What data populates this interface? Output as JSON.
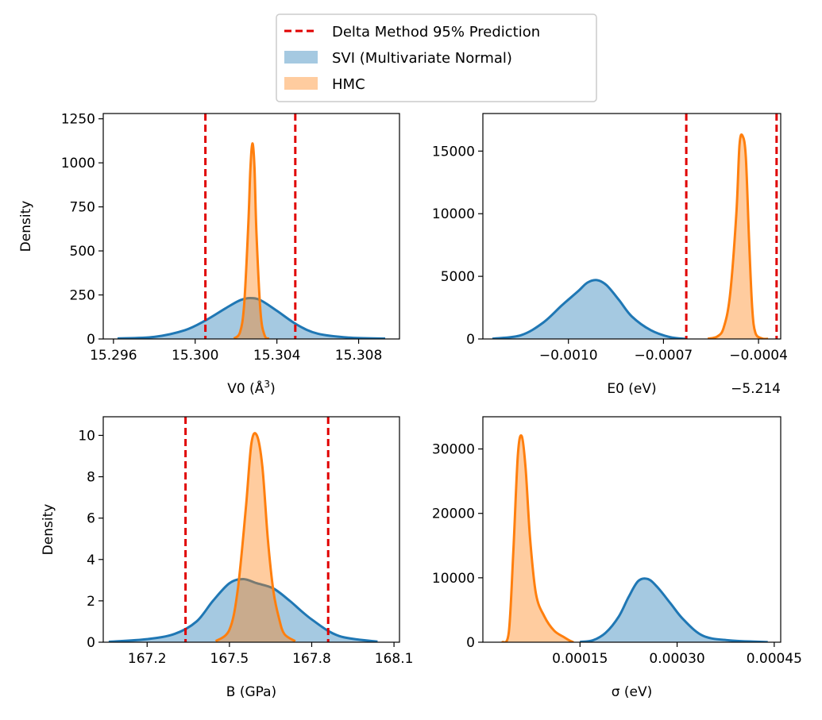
{
  "legend": {
    "placement": "top-center",
    "items": [
      {
        "label": "Delta Method 95% Prediction",
        "kind": "dashed-line",
        "color": "#e00000"
      },
      {
        "label": "SVI (Multivariate Normal)",
        "kind": "patch",
        "color": "#1f77b4"
      },
      {
        "label": "HMC",
        "kind": "patch",
        "color": "#ff7f0e"
      }
    ]
  },
  "colors": {
    "svi": "#1f77b4",
    "hmc": "#ff7f0e",
    "delta": "#e00000"
  },
  "chart_data": [
    {
      "id": "v0",
      "type": "area",
      "xlabel_main": "V0 (Å",
      "xlabel_sup": "3",
      "xlabel_end": ")",
      "ylabel": "Density",
      "xlim": [
        15.2955,
        15.31
      ],
      "ylim": [
        0,
        1280
      ],
      "xticks": [
        15.296,
        15.3,
        15.304,
        15.308
      ],
      "xtick_labels": [
        "15.296",
        "15.300",
        "15.304",
        "15.308"
      ],
      "yticks": [
        0,
        250,
        500,
        750,
        1000,
        1250
      ],
      "ytick_labels": [
        "0",
        "250",
        "500",
        "750",
        "1000",
        "1250"
      ],
      "offset_label": "",
      "delta_lines": [
        15.3005,
        15.3049
      ],
      "series": [
        {
          "key": "svi",
          "x": [
            15.2962,
            15.298,
            15.2995,
            15.3005,
            15.3015,
            15.3022,
            15.3027,
            15.3032,
            15.304,
            15.305,
            15.306,
            15.3075,
            15.3093
          ],
          "y": [
            3,
            12,
            50,
            105,
            175,
            220,
            232,
            220,
            160,
            80,
            30,
            8,
            2
          ]
        },
        {
          "key": "hmc",
          "x": [
            15.3019,
            15.3022,
            15.3024,
            15.3026,
            15.3027,
            15.3028,
            15.3029,
            15.303,
            15.3032,
            15.3034,
            15.3036
          ],
          "y": [
            3,
            40,
            200,
            650,
            960,
            1110,
            980,
            600,
            150,
            20,
            2
          ]
        }
      ]
    },
    {
      "id": "e0",
      "type": "area",
      "xlabel_main": "E0 (eV)",
      "xlabel_sup": "",
      "xlabel_end": "",
      "ylabel": "",
      "xlim": [
        -0.00127,
        -0.00033
      ],
      "ylim": [
        0,
        18000
      ],
      "xticks": [
        -0.001,
        -0.0007,
        -0.0004
      ],
      "xtick_labels": [
        "−0.0010",
        "−0.0007",
        "−0.0004"
      ],
      "yticks": [
        0,
        5000,
        10000,
        15000
      ],
      "ytick_labels": [
        "0",
        "5000",
        "10000",
        "15000"
      ],
      "offset_label": "−5.214",
      "delta_lines": [
        -0.000628,
        -0.000343
      ],
      "series": [
        {
          "key": "svi",
          "x": [
            -0.00124,
            -0.00115,
            -0.00108,
            -0.00102,
            -0.00097,
            -0.00094,
            -0.00091,
            -0.00088,
            -0.00084,
            -0.0008,
            -0.00074,
            -0.00068,
            -0.00063
          ],
          "y": [
            20,
            300,
            1300,
            2700,
            3800,
            4500,
            4700,
            4300,
            3100,
            1800,
            700,
            150,
            10
          ]
        },
        {
          "key": "hmc",
          "x": [
            -0.00056,
            -0.00053,
            -0.00051,
            -0.00049,
            -0.00047,
            -0.00046,
            -0.00045,
            -0.00044,
            -0.00043,
            -0.00042,
            -0.00041,
            -0.00039,
            -0.00037
          ],
          "y": [
            20,
            200,
            900,
            3500,
            10000,
            15500,
            16200,
            14500,
            8000,
            2500,
            500,
            50,
            10
          ]
        }
      ]
    },
    {
      "id": "b",
      "type": "area",
      "xlabel_main": "B (GPa)",
      "xlabel_sup": "",
      "xlabel_end": "",
      "ylabel": "Density",
      "xlim": [
        167.04,
        168.12
      ],
      "ylim": [
        0,
        10.9
      ],
      "xticks": [
        167.2,
        167.5,
        167.8,
        168.1
      ],
      "xtick_labels": [
        "167.2",
        "167.5",
        "167.8",
        "168.1"
      ],
      "yticks": [
        0,
        2,
        4,
        6,
        8,
        10
      ],
      "ytick_labels": [
        "0",
        "2",
        "4",
        "6",
        "8",
        "10"
      ],
      "offset_label": "",
      "delta_lines": [
        167.34,
        167.86
      ],
      "series": [
        {
          "key": "svi",
          "x": [
            167.06,
            167.2,
            167.3,
            167.38,
            167.44,
            167.5,
            167.55,
            167.6,
            167.66,
            167.72,
            167.8,
            167.9,
            168.04
          ],
          "y": [
            0.02,
            0.15,
            0.4,
            1.0,
            2.0,
            2.85,
            3.05,
            2.85,
            2.6,
            2.0,
            1.1,
            0.3,
            0.03
          ]
        },
        {
          "key": "hmc",
          "x": [
            167.45,
            167.5,
            167.53,
            167.56,
            167.58,
            167.6,
            167.62,
            167.64,
            167.66,
            167.68,
            167.7,
            167.74
          ],
          "y": [
            0.05,
            0.6,
            2.5,
            6.5,
            9.6,
            10.0,
            8.5,
            5.0,
            2.5,
            1.2,
            0.4,
            0.05
          ]
        }
      ]
    },
    {
      "id": "sigma",
      "type": "area",
      "xlabel_main": "σ (eV)",
      "xlabel_sup": "",
      "xlabel_end": "",
      "ylabel": "",
      "xlim": [
        0.0,
        0.00046
      ],
      "ylim": [
        0,
        35000
      ],
      "xticks": [
        0.00015,
        0.0003,
        0.00045
      ],
      "xtick_labels": [
        "0.00015",
        "0.00030",
        "0.00045"
      ],
      "yticks": [
        0,
        10000,
        20000,
        30000
      ],
      "ytick_labels": [
        "0",
        "10000",
        "20000",
        "30000"
      ],
      "offset_label": "",
      "delta_lines": [],
      "series": [
        {
          "key": "svi",
          "x": [
            0.00015,
            0.00017,
            0.00019,
            0.00021,
            0.000225,
            0.00024,
            0.000255,
            0.00027,
            0.00029,
            0.00031,
            0.00034,
            0.00038,
            0.00044
          ],
          "y": [
            50,
            300,
            1500,
            4000,
            7000,
            9500,
            9800,
            8500,
            6000,
            3500,
            1000,
            300,
            20
          ]
        },
        {
          "key": "hmc",
          "x": [
            3e-05,
            4e-05,
            4.7e-05,
            5.4e-05,
            6e-05,
            6.6e-05,
            7.3e-05,
            8.2e-05,
            9.5e-05,
            0.00011,
            0.000125,
            0.000135,
            0.00014
          ],
          "y": [
            0,
            1500,
            14000,
            29000,
            32000,
            27000,
            16000,
            7500,
            4000,
            1800,
            800,
            200,
            0
          ]
        }
      ]
    }
  ]
}
